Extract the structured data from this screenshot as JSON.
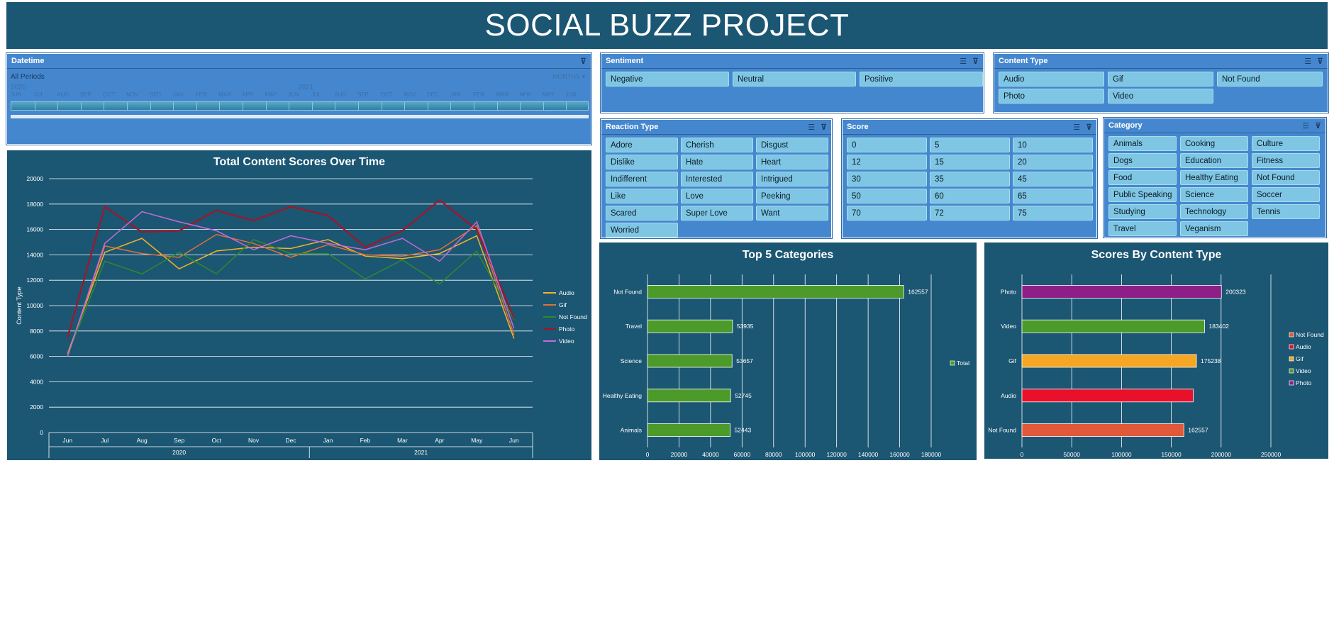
{
  "title": "SOCIAL BUZZ PROJECT",
  "timeline": {
    "header": "Datetime",
    "all_periods": "All Periods",
    "unit": "MONTHS",
    "year_labels": [
      "2020",
      "2021"
    ],
    "months": [
      "JUN",
      "JUL",
      "AUG",
      "SEP",
      "OCT",
      "NOV",
      "DEC",
      "JAN",
      "FEB",
      "MAR",
      "APR",
      "MAY",
      "JUN",
      "JUL",
      "AUG",
      "SEP",
      "OCT",
      "NOV",
      "DEC",
      "JAN",
      "FEB",
      "MAR",
      "APR",
      "MAY",
      "JUN"
    ]
  },
  "sentiment": {
    "header": "Sentiment",
    "items": [
      "Negative",
      "Neutral",
      "Positive"
    ]
  },
  "content_type": {
    "header": "Content Type",
    "items": [
      "Audio",
      "Gif",
      "Not Found",
      "Photo",
      "Video"
    ]
  },
  "reaction_type": {
    "header": "Reaction Type",
    "items": [
      "Adore",
      "Cherish",
      "Disgust",
      "Dislike",
      "Hate",
      "Heart",
      "Indifferent",
      "Interested",
      "Intrigued",
      "Like",
      "Love",
      "Peeking",
      "Scared",
      "Super Love",
      "Want",
      "Worried"
    ]
  },
  "score": {
    "header": "Score",
    "items": [
      "0",
      "5",
      "10",
      "12",
      "15",
      "20",
      "30",
      "35",
      "45",
      "50",
      "60",
      "65",
      "70",
      "72",
      "75"
    ]
  },
  "category": {
    "header": "Category",
    "items": [
      "Animals",
      "Cooking",
      "Culture",
      "Dogs",
      "Education",
      "Fitness",
      "Food",
      "Healthy Eating",
      "Not Found",
      "Public Speaking",
      "Science",
      "Soccer",
      "Studying",
      "Technology",
      "Tennis",
      "Travel",
      "Veganism"
    ]
  },
  "chart_data": [
    {
      "type": "line",
      "title": "Total  Content Scores Over Time",
      "ylabel": "Content Type",
      "x": [
        "Jun",
        "Jul",
        "Aug",
        "Sep",
        "Oct",
        "Nov",
        "Dec",
        "Jan",
        "Feb",
        "Mar",
        "Apr",
        "May",
        "Jun"
      ],
      "x_groups": [
        {
          "label": "2020",
          "count": 7
        },
        {
          "label": "2021",
          "count": 6
        }
      ],
      "ylim": [
        0,
        20000
      ],
      "yticks": [
        0,
        2000,
        4000,
        6000,
        8000,
        10000,
        12000,
        14000,
        16000,
        18000,
        20000
      ],
      "legend_position": "right",
      "grid": true,
      "series": [
        {
          "name": "Audio",
          "color": "#f5b323",
          "values": [
            6200,
            14200,
            15300,
            12900,
            14300,
            14600,
            14500,
            15200,
            13900,
            13700,
            14100,
            15500,
            7400
          ]
        },
        {
          "name": "Gif",
          "color": "#e0703a",
          "values": [
            6000,
            14700,
            14100,
            13800,
            15600,
            14900,
            13800,
            14800,
            14000,
            13900,
            14400,
            16300,
            7700
          ]
        },
        {
          "name": "Not Found",
          "color": "#2e8a2e",
          "values": [
            6100,
            13500,
            12500,
            14200,
            12500,
            15200,
            14100,
            14100,
            12100,
            13600,
            11700,
            14300,
            8900
          ]
        },
        {
          "name": "Photo",
          "color": "#a3152a",
          "values": [
            7500,
            17800,
            15800,
            15900,
            17500,
            16700,
            17800,
            17100,
            14600,
            15900,
            18300,
            16000,
            9000
          ]
        },
        {
          "name": "Video",
          "color": "#c86ad8",
          "values": [
            6000,
            14900,
            17400,
            16600,
            15900,
            14400,
            15500,
            14900,
            14400,
            15300,
            13500,
            16600,
            8200
          ]
        }
      ]
    },
    {
      "type": "bar",
      "orientation": "horizontal",
      "title": "Top 5 Categories",
      "categories": [
        "Not Found",
        "Travel",
        "Science",
        "Healthy Eating",
        "Animals"
      ],
      "values": [
        162557,
        53935,
        53657,
        52745,
        52443
      ],
      "series_name": "Total",
      "bar_color": "#4c9a2a",
      "xlim": [
        0,
        180000
      ],
      "xticks": [
        0,
        20000,
        40000,
        60000,
        80000,
        100000,
        120000,
        140000,
        160000,
        180000
      ],
      "legend_position": "right",
      "grid": true
    },
    {
      "type": "bar",
      "orientation": "horizontal",
      "title": "Scores By Content Type",
      "categories": [
        "Photo",
        "Video",
        "Gif",
        "Audio",
        "Not Found"
      ],
      "values": [
        200323,
        183402,
        175238,
        172000,
        162557
      ],
      "data_labels": [
        "200323",
        "183402",
        "175238",
        "",
        "162557"
      ],
      "colors": [
        "#8e1f86",
        "#4c9a2a",
        "#f5a623",
        "#e8102a",
        "#e0593a"
      ],
      "xlim": [
        0,
        250000
      ],
      "xticks": [
        0,
        50000,
        100000,
        150000,
        200000,
        250000
      ],
      "legend": [
        {
          "name": "Not Found",
          "color": "#e0593a"
        },
        {
          "name": "Audio",
          "color": "#e8102a"
        },
        {
          "name": "Gif",
          "color": "#f5a623"
        },
        {
          "name": "Video",
          "color": "#4c9a2a"
        },
        {
          "name": "Photo",
          "color": "#8e1f86"
        }
      ],
      "legend_position": "right",
      "grid": true
    }
  ]
}
